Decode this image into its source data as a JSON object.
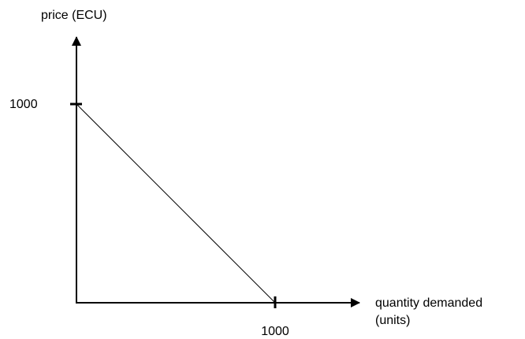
{
  "chart_data": {
    "type": "line",
    "title": "",
    "xlabel": [
      "quantity demanded",
      "(units)"
    ],
    "ylabel": "price (ECU)",
    "xlim": [
      0,
      1000
    ],
    "ylim": [
      0,
      1000
    ],
    "x_ticks": [
      "1000"
    ],
    "y_ticks": [
      "1000"
    ],
    "grid": false,
    "series": [
      {
        "x": [
          0,
          1000
        ],
        "y": [
          1000,
          0
        ]
      }
    ],
    "colors": {
      "axis": "#000000",
      "line": "#000000"
    }
  }
}
